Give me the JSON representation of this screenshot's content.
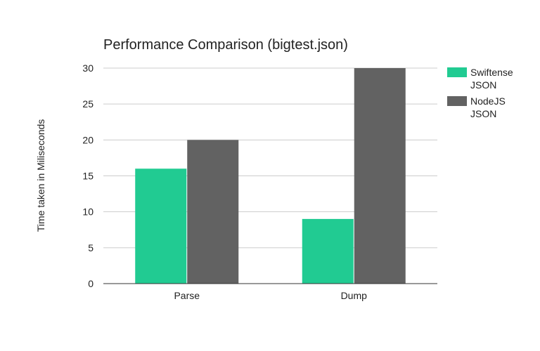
{
  "chart_data": {
    "type": "bar",
    "title": "Performance Comparison (bigtest.json)",
    "xlabel": "",
    "ylabel": "Time taken in Miliseconds",
    "categories": [
      "Parse",
      "Dump"
    ],
    "series": [
      {
        "name": "Swiftense JSON",
        "legend_lines": [
          "Swiftense",
          "JSON"
        ],
        "values": [
          16,
          9
        ],
        "color": "#21cb92"
      },
      {
        "name": "NodeJS JSON",
        "legend_lines": [
          "NodeJS",
          "JSON"
        ],
        "values": [
          20,
          30
        ],
        "color": "#626262"
      }
    ],
    "ylim": [
      0,
      30
    ],
    "yticks": [
      0,
      5,
      10,
      15,
      20,
      25,
      30
    ],
    "grid": true,
    "legend": "right"
  }
}
